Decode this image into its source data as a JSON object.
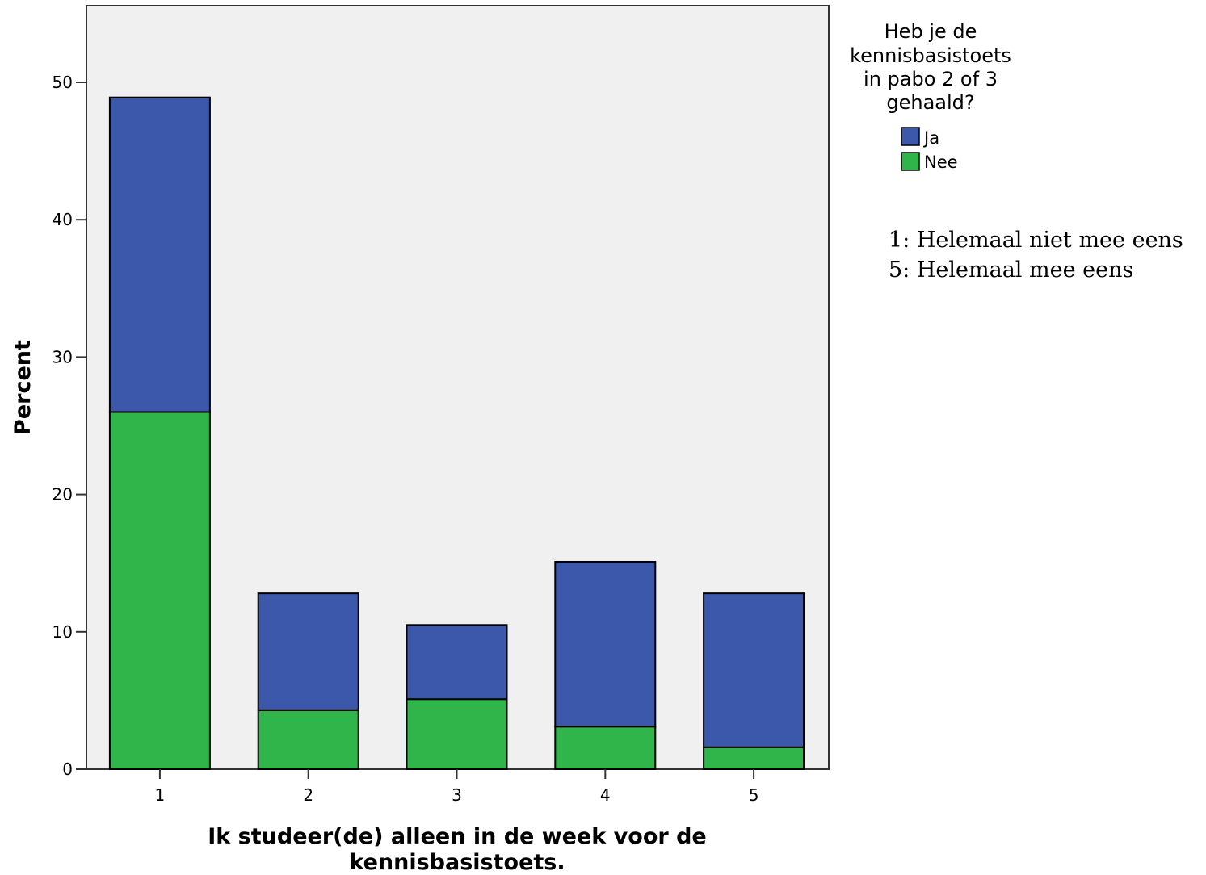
{
  "chart_data": {
    "type": "bar",
    "stacked": true,
    "categories": [
      "1",
      "2",
      "3",
      "4",
      "5"
    ],
    "series": [
      {
        "name": "Nee",
        "color": "#2fb54a",
        "values": [
          26.0,
          4.3,
          5.1,
          3.1,
          1.6
        ]
      },
      {
        "name": "Ja",
        "color": "#3c58ab",
        "values": [
          22.9,
          8.5,
          5.4,
          12.0,
          11.2
        ]
      }
    ],
    "xlabel_lines": [
      "Ik studeer(de) alleen in de week voor de",
      "kennisbasistoets."
    ],
    "ylabel": "Percent",
    "ylim": [
      0,
      55
    ],
    "yticks": [
      "0",
      "10",
      "20",
      "30",
      "40",
      "50"
    ],
    "ytick_values": [
      0,
      10,
      20,
      30,
      40,
      50
    ],
    "grid": false,
    "plot_background": "#f0f0f0",
    "legend": {
      "title_lines": [
        "Heb je de",
        "kennisbasistoets",
        "in pabo 2 of 3",
        "gehaald?"
      ],
      "entries": [
        {
          "label": "Ja",
          "color": "#3c58ab"
        },
        {
          "label": "Nee",
          "color": "#2fb54a"
        }
      ],
      "placement": "right"
    },
    "notes": [
      "1: Helemaal niet mee eens",
      "5: Helemaal mee eens"
    ]
  }
}
